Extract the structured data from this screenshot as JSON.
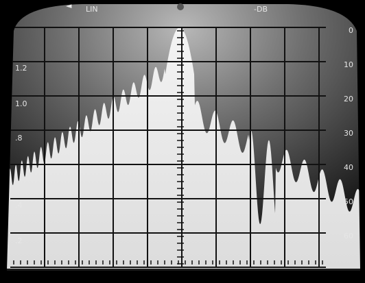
{
  "header": {
    "mode": "LIN",
    "unit": "-DB"
  },
  "left_scale": [
    "1.2",
    "1.0",
    ".8",
    ".4",
    ".2"
  ],
  "right_scale": [
    "0",
    "10",
    "20",
    "30",
    "40",
    "50",
    "60"
  ]
}
